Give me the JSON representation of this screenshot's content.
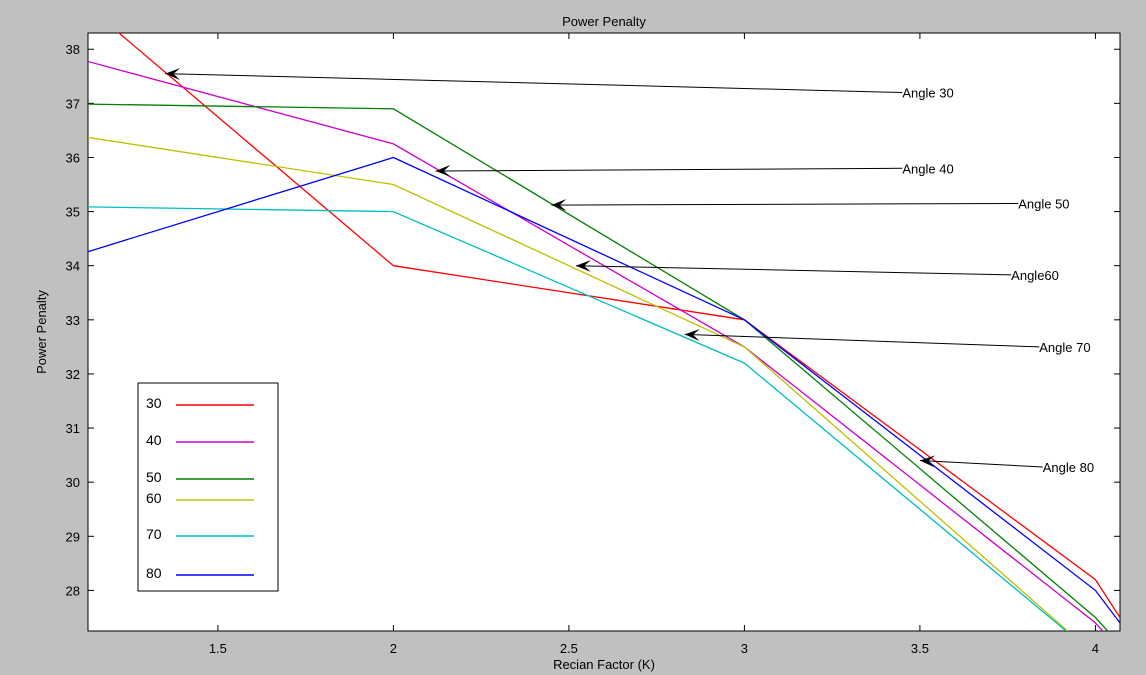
{
  "chart_data": {
    "type": "line",
    "title": "Power Penalty",
    "xlabel": "Recian Factor (K)",
    "ylabel": "Power Penalty",
    "xlim": [
      1.13,
      4.07
    ],
    "ylim": [
      27.25,
      38.3
    ],
    "xticks": [
      "1.5",
      "2",
      "2.5",
      "3",
      "3.5",
      "4"
    ],
    "xtick_values": [
      1.5,
      2,
      2.5,
      3,
      3.5,
      4
    ],
    "yticks": [
      "28",
      "29",
      "30",
      "31",
      "32",
      "33",
      "34",
      "35",
      "36",
      "37",
      "38"
    ],
    "ytick_values": [
      28,
      29,
      30,
      31,
      32,
      33,
      34,
      35,
      36,
      37,
      38
    ],
    "grid": false,
    "legend_position": "bottom-left",
    "series": [
      {
        "name": "30",
        "color": "#ff0000",
        "x": [
          1.0,
          2.0,
          3.0,
          4.0,
          4.1
        ],
        "y": [
          39.5,
          34.0,
          33.0,
          28.2,
          27.2
        ]
      },
      {
        "name": "40",
        "color": "#cc00cc",
        "x": [
          1.0,
          2.0,
          3.0,
          4.0,
          4.07
        ],
        "y": [
          38.0,
          36.25,
          32.5,
          27.4,
          26.9
        ]
      },
      {
        "name": "50",
        "color": "#008000",
        "x": [
          1.0,
          2.0,
          3.0,
          4.0,
          4.07
        ],
        "y": [
          37.0,
          36.9,
          33.0,
          27.5,
          27.0
        ]
      },
      {
        "name": "60",
        "color": "#bfbf00",
        "x": [
          1.0,
          2.0,
          3.0,
          4.0
        ],
        "y": [
          36.5,
          35.5,
          32.5,
          26.8
        ]
      },
      {
        "name": "70",
        "color": "#00bfbf",
        "x": [
          1.0,
          2.0,
          3.0,
          4.0
        ],
        "y": [
          35.1,
          35.0,
          32.2,
          26.8
        ]
      },
      {
        "name": "80",
        "color": "#0000ff",
        "x": [
          1.0,
          2.0,
          3.0,
          4.0,
          4.07
        ],
        "y": [
          34.0,
          36.0,
          33.0,
          28.0,
          27.4
        ]
      }
    ],
    "annotations": [
      {
        "text": "Angle 30",
        "text_x": 3.45,
        "text_y": 37.2,
        "arrow_x": 1.35,
        "arrow_y": 37.55
      },
      {
        "text": "Angle 40",
        "text_x": 3.45,
        "text_y": 35.8,
        "arrow_x": 2.12,
        "arrow_y": 35.75
      },
      {
        "text": "Angle 50",
        "text_x": 3.78,
        "text_y": 35.15,
        "arrow_x": 2.45,
        "arrow_y": 35.12
      },
      {
        "text": "Angle60",
        "text_x": 3.76,
        "text_y": 33.83,
        "arrow_x": 2.52,
        "arrow_y": 34.0
      },
      {
        "text": "Angle 70",
        "text_x": 3.84,
        "text_y": 32.5,
        "arrow_x": 2.83,
        "arrow_y": 32.73
      },
      {
        "text": "Angle 80",
        "text_x": 3.85,
        "text_y": 30.28,
        "arrow_x": 3.5,
        "arrow_y": 30.4
      }
    ]
  }
}
